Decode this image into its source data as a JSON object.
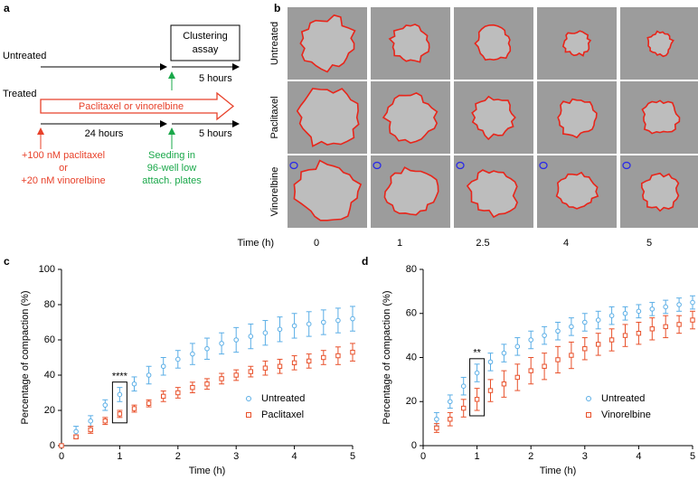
{
  "panel_a": {
    "label": "a",
    "box": [
      "Clustering",
      "assay"
    ],
    "untreated": "Untreated",
    "treated": "Treated",
    "treatment": "Paclitaxel or vinorelbine",
    "dur_untreated": "5 hours",
    "dur_pre": "24 hours",
    "dur_post": "5 hours",
    "drug_lines": [
      "+100 nM paclitaxel",
      "or",
      "+20 nM vinorelbine"
    ],
    "seed_lines": [
      "Seeding in",
      "96-well low",
      "attach. plates"
    ]
  },
  "panel_b": {
    "label": "b",
    "rows": [
      "Untreated",
      "Paclitaxel",
      "Vinorelbine"
    ],
    "time_label": "Time (h)",
    "times": [
      0,
      1,
      2.5,
      4,
      5
    ]
  },
  "chart_data": [
    {
      "type": "scatter",
      "panel_label": "c",
      "xlabel": "Time (h)",
      "ylabel": "Percentage of compaction (%)",
      "xlim": [
        0,
        5
      ],
      "ylim": [
        0,
        100
      ],
      "xticks": [
        0,
        1,
        2,
        3,
        4,
        5
      ],
      "yticks": [
        0,
        20,
        40,
        60,
        80,
        100
      ],
      "legend": "lower right",
      "annotation": {
        "text": "****",
        "x": 1
      },
      "x": [
        0,
        0.25,
        0.5,
        0.75,
        1,
        1.25,
        1.5,
        1.75,
        2,
        2.25,
        2.5,
        2.75,
        3,
        3.25,
        3.5,
        3.75,
        4,
        4.25,
        4.5,
        4.75,
        5
      ],
      "series": [
        {
          "name": "Untreated",
          "color": "#5aaee6",
          "marker": "circle",
          "values": [
            0,
            8,
            14,
            23,
            29,
            35,
            40,
            45,
            49,
            52,
            55,
            58,
            60,
            62,
            64,
            66,
            68,
            69,
            70,
            71,
            72
          ],
          "errors": [
            0,
            3,
            3,
            3,
            4,
            4,
            5,
            5,
            5,
            6,
            6,
            6,
            7,
            7,
            7,
            7,
            7,
            7,
            7,
            7,
            7
          ]
        },
        {
          "name": "Paclitaxel",
          "color": "#e8502a",
          "marker": "square",
          "values": [
            0,
            5,
            9,
            14,
            18,
            21,
            24,
            28,
            30,
            33,
            35,
            38,
            40,
            42,
            44,
            45,
            47,
            48,
            50,
            51,
            53
          ],
          "errors": [
            0,
            1,
            2,
            2,
            2,
            2,
            2,
            3,
            3,
            3,
            3,
            3,
            3,
            3,
            4,
            4,
            4,
            4,
            4,
            5,
            5
          ]
        }
      ]
    },
    {
      "type": "scatter",
      "panel_label": "d",
      "xlabel": "Time (h)",
      "ylabel": "Percentage of compaction (%)",
      "xlim": [
        0,
        5
      ],
      "ylim": [
        0,
        80
      ],
      "xticks": [
        0,
        1,
        2,
        3,
        4,
        5
      ],
      "yticks": [
        0,
        20,
        40,
        60,
        80
      ],
      "legend": "lower right",
      "annotation": {
        "text": "**",
        "x": 1
      },
      "x": [
        0.25,
        0.5,
        0.75,
        1,
        1.25,
        1.5,
        1.75,
        2,
        2.25,
        2.5,
        2.75,
        3,
        3.25,
        3.5,
        3.75,
        4,
        4.25,
        4.5,
        4.75,
        5
      ],
      "series": [
        {
          "name": "Untreated",
          "color": "#5aaee6",
          "marker": "circle",
          "values": [
            12,
            20,
            27,
            33,
            38,
            42,
            45,
            48,
            50,
            52,
            54,
            56,
            57,
            59,
            60,
            61,
            62,
            63,
            64,
            65
          ],
          "errors": [
            3,
            3,
            4,
            4,
            4,
            4,
            4,
            4,
            4,
            4,
            4,
            4,
            4,
            4,
            3,
            3,
            3,
            3,
            3,
            3
          ]
        },
        {
          "name": "Vinorelbine",
          "color": "#e8502a",
          "marker": "square",
          "values": [
            8,
            12,
            17,
            21,
            25,
            28,
            31,
            34,
            36,
            39,
            41,
            44,
            46,
            48,
            50,
            51,
            53,
            54,
            55,
            57
          ],
          "errors": [
            2,
            3,
            4,
            5,
            5,
            6,
            6,
            6,
            6,
            6,
            6,
            5,
            5,
            5,
            5,
            5,
            5,
            5,
            4,
            4
          ]
        }
      ]
    }
  ]
}
